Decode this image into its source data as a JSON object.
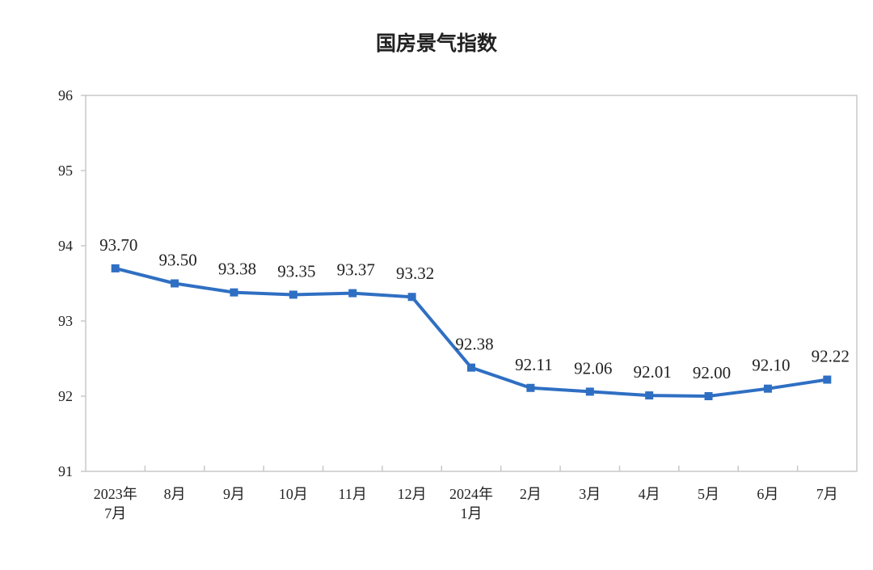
{
  "chart_data": {
    "type": "line",
    "title": "国房景气指数",
    "categories": [
      [
        "2023年",
        "7月"
      ],
      [
        "8月"
      ],
      [
        "9月"
      ],
      [
        "10月"
      ],
      [
        "11月"
      ],
      [
        "12月"
      ],
      [
        "2024年",
        "1月"
      ],
      [
        "2月"
      ],
      [
        "3月"
      ],
      [
        "4月"
      ],
      [
        "5月"
      ],
      [
        "6月"
      ],
      [
        "7月"
      ]
    ],
    "values": [
      93.7,
      93.5,
      93.38,
      93.35,
      93.37,
      93.32,
      92.38,
      92.11,
      92.06,
      92.01,
      92.0,
      92.1,
      92.22
    ],
    "data_labels": [
      "93.70",
      "93.50",
      "93.38",
      "93.35",
      "93.37",
      "93.32",
      "92.38",
      "92.11",
      "92.06",
      "92.01",
      "92.00",
      "92.10",
      "92.22"
    ],
    "yticks": [
      91,
      92,
      93,
      94,
      95,
      96
    ],
    "ylim": [
      91,
      96
    ],
    "grid": false,
    "line_color": "#2f6fc3",
    "marker": "square"
  }
}
